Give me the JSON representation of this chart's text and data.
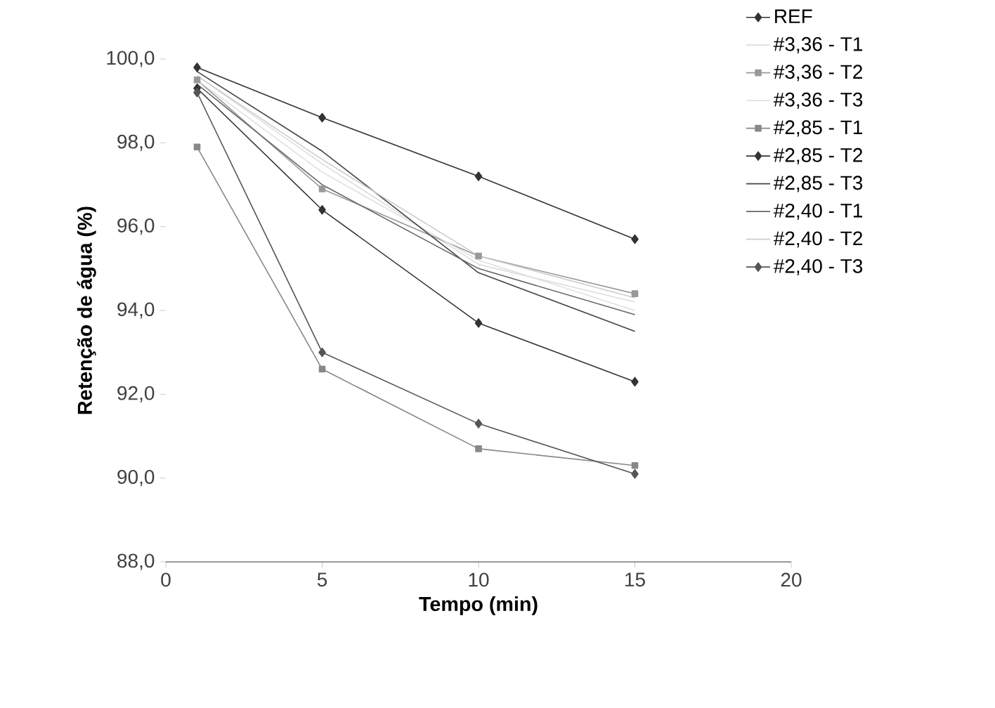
{
  "chart_data": {
    "type": "line",
    "xlabel": "Tempo (min)",
    "ylabel": "Retenção de água (%)",
    "x": [
      1,
      5,
      10,
      15
    ],
    "series": [
      {
        "name": "REF",
        "color": "#333333",
        "marker": "diamond",
        "values": [
          99.8,
          98.6,
          97.2,
          95.7
        ]
      },
      {
        "name": "#3,36 - T1",
        "color": "#dddddd",
        "marker": "none",
        "values": [
          99.6,
          97.5,
          95.1,
          94.2
        ]
      },
      {
        "name": "#3,36 - T2",
        "color": "#999999",
        "marker": "square",
        "values": [
          99.5,
          96.9,
          95.3,
          94.4
        ]
      },
      {
        "name": "#3,36 - T3",
        "color": "#e0e0e0",
        "marker": "none",
        "values": [
          99.5,
          97.3,
          95.2,
          94.0
        ]
      },
      {
        "name": "#2,85 - T1",
        "color": "#888888",
        "marker": "square",
        "values": [
          97.9,
          92.6,
          90.7,
          90.3
        ]
      },
      {
        "name": "#2,85 - T2",
        "color": "#333333",
        "marker": "diamond",
        "values": [
          99.3,
          96.4,
          93.7,
          92.3
        ]
      },
      {
        "name": "#2,85 - T3",
        "color": "#444444",
        "marker": "none",
        "values": [
          99.7,
          97.8,
          94.9,
          93.5
        ]
      },
      {
        "name": "#2,40 - T1",
        "color": "#666666",
        "marker": "none",
        "values": [
          99.4,
          97.0,
          95.0,
          93.9
        ]
      },
      {
        "name": "#2,40 - T2",
        "color": "#cccccc",
        "marker": "none",
        "values": [
          99.6,
          97.6,
          95.3,
          94.3
        ]
      },
      {
        "name": "#2,40 - T3",
        "color": "#555555",
        "marker": "diamond",
        "values": [
          99.2,
          93.0,
          91.3,
          90.1
        ]
      }
    ],
    "xlim": [
      0,
      20
    ],
    "xticks": [
      0,
      5,
      10,
      15,
      20
    ],
    "ylim": [
      88,
      100
    ],
    "yticks": [
      {
        "value": 88,
        "label": "88,0"
      },
      {
        "value": 90,
        "label": "90,0"
      },
      {
        "value": 92,
        "label": "92,0"
      },
      {
        "value": 94,
        "label": "94,0"
      },
      {
        "value": 96,
        "label": "96,0"
      },
      {
        "value": 98,
        "label": "98,0"
      },
      {
        "value": 100,
        "label": "100,0"
      }
    ],
    "legend": "right",
    "grid": false
  }
}
